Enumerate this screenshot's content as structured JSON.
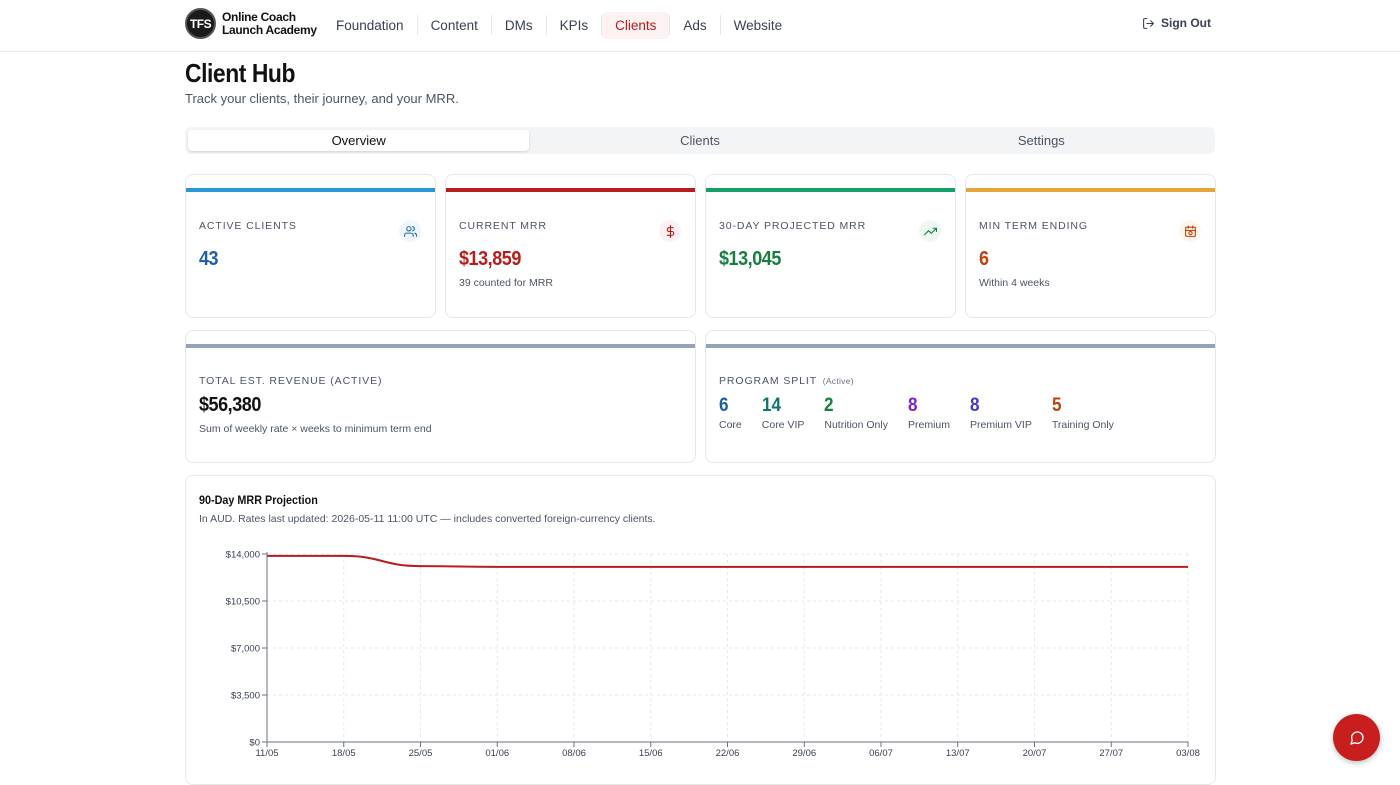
{
  "brand": {
    "badge": "TFS",
    "line1": "Online Coach",
    "line2": "Launch Academy"
  },
  "nav": [
    "Foundation",
    "Content",
    "DMs",
    "KPIs",
    "Clients",
    "Ads",
    "Website"
  ],
  "nav_active": "Clients",
  "sign_out": "Sign Out",
  "page": {
    "title": "Client Hub",
    "subtitle": "Track your clients, their journey, and your MRR."
  },
  "tabs": [
    "Overview",
    "Clients",
    "Settings"
  ],
  "active_tab": "Overview",
  "stats": {
    "active_clients": {
      "label": "ACTIVE CLIENTS",
      "value": "43"
    },
    "current_mrr": {
      "label": "CURRENT MRR",
      "value": "$13,859",
      "note": "39 counted for MRR"
    },
    "projected_mrr": {
      "label": "30-DAY PROJECTED MRR",
      "value": "$13,045"
    },
    "min_term": {
      "label": "MIN TERM ENDING",
      "value": "6",
      "note": "Within 4 weeks"
    }
  },
  "revenue": {
    "label": "TOTAL EST. REVENUE (ACTIVE)",
    "value": "$56,380",
    "note": "Sum of weekly rate × weeks to minimum term end"
  },
  "program_split": {
    "label": "PROGRAM SPLIT",
    "tag": "(Active)",
    "items": [
      {
        "count": "6",
        "name": "Core",
        "color": "#1d5fa8"
      },
      {
        "count": "14",
        "name": "Core VIP",
        "color": "#0f766e"
      },
      {
        "count": "2",
        "name": "Nutrition Only",
        "color": "#15803d"
      },
      {
        "count": "8",
        "name": "Premium",
        "color": "#7e22ce"
      },
      {
        "count": "8",
        "name": "Premium VIP",
        "color": "#4338ca"
      },
      {
        "count": "5",
        "name": "Training Only",
        "color": "#c2410c"
      }
    ]
  },
  "colors": {
    "blue": "#2b95d6",
    "red": "#b91c1c",
    "green": "#15a06a",
    "orange": "#e8a33a",
    "slate": "#94a3b8"
  },
  "chart_title": "90-Day MRR Projection",
  "chart_sub": "In AUD. Rates last updated: 2026-05-11 11:00 UTC — includes converted foreign-currency clients.",
  "chart_data": {
    "type": "line",
    "x": [
      "11/05",
      "18/05",
      "25/05",
      "01/06",
      "08/06",
      "15/06",
      "22/06",
      "29/06",
      "06/07",
      "13/07",
      "20/07",
      "27/07",
      "03/08"
    ],
    "series": [
      {
        "values": [
          13859,
          13859,
          13100,
          13045,
          13045,
          13045,
          13045,
          13045,
          13045,
          13045,
          13045,
          13045,
          13045
        ]
      }
    ],
    "y_ticks": [
      "$14,000",
      "$10,500",
      "$7,000",
      "$3,500",
      "$0"
    ],
    "ylim": [
      0,
      14000
    ],
    "grid": true,
    "color": "#b91c1c"
  },
  "icons": {
    "chat": "chat-icon",
    "sign_out": "sign-out-icon"
  }
}
